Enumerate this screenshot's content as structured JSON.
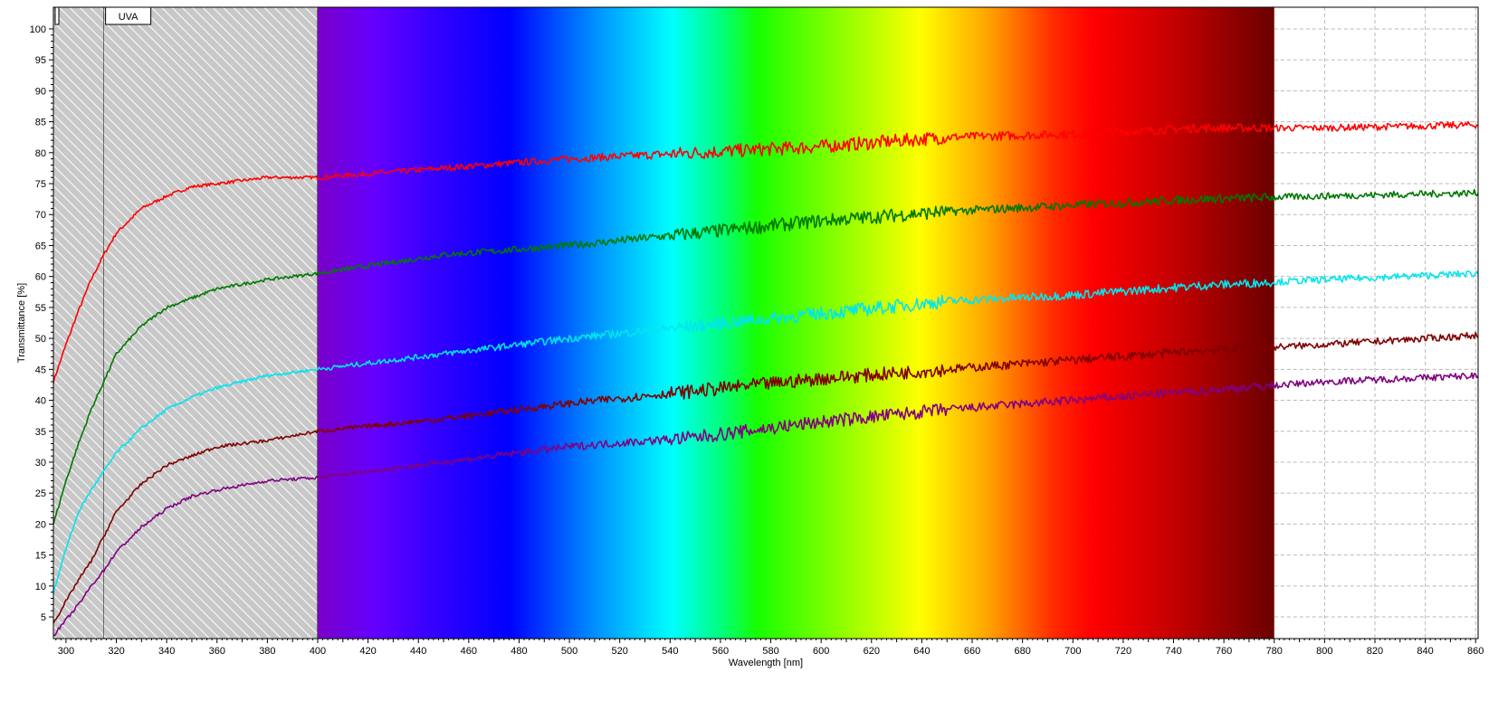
{
  "chart_data": {
    "type": "line",
    "xlabel": "Wavelength [nm]",
    "ylabel": "Transmittance [%]",
    "xlim": [
      295,
      861
    ],
    "ylim": [
      1.5,
      103.5
    ],
    "x_ticks": [
      300,
      320,
      340,
      360,
      380,
      400,
      420,
      440,
      460,
      480,
      500,
      520,
      540,
      560,
      580,
      600,
      620,
      640,
      660,
      680,
      700,
      720,
      740,
      760,
      780,
      800,
      820,
      840,
      860
    ],
    "y_ticks": [
      5,
      10,
      15,
      20,
      25,
      30,
      35,
      40,
      45,
      50,
      55,
      60,
      65,
      70,
      75,
      80,
      85,
      90,
      95,
      100
    ],
    "grid": true,
    "regions": [
      {
        "label": "",
        "x_range": [
          295,
          315
        ],
        "style": "hatched"
      },
      {
        "label": "UVA",
        "x_range": [
          315,
          400
        ],
        "style": "hatched"
      },
      {
        "label": "",
        "x_range": [
          400,
          780
        ],
        "style": "visible-spectrum"
      }
    ],
    "series": [
      {
        "color": "#ff0000",
        "x": [
          295,
          300,
          305,
          310,
          315,
          320,
          330,
          340,
          350,
          360,
          380,
          400,
          450,
          500,
          550,
          600,
          650,
          700,
          750,
          800,
          861
        ],
        "y": [
          43,
          49,
          54.5,
          59.5,
          63.5,
          67,
          71,
          73,
          74.5,
          75,
          76,
          76,
          77.5,
          79,
          80,
          81,
          82.5,
          83,
          84,
          84,
          84.5
        ]
      },
      {
        "color": "#007800",
        "x": [
          295,
          300,
          305,
          310,
          315,
          320,
          330,
          340,
          350,
          360,
          380,
          400,
          450,
          500,
          550,
          600,
          650,
          700,
          750,
          800,
          861
        ],
        "y": [
          20,
          27,
          33,
          38.5,
          43,
          47.5,
          52,
          55,
          56.5,
          58,
          59.5,
          60.5,
          63.5,
          65,
          67,
          69,
          70.5,
          71.5,
          72.5,
          73,
          73.5
        ]
      },
      {
        "color": "#00e5ee",
        "x": [
          295,
          300,
          305,
          310,
          315,
          320,
          330,
          340,
          350,
          360,
          380,
          400,
          450,
          500,
          550,
          600,
          650,
          700,
          750,
          800,
          861
        ],
        "y": [
          9,
          16,
          22,
          25.5,
          28.5,
          31.5,
          35.5,
          38.5,
          40.5,
          42,
          44,
          45,
          47.5,
          50,
          52,
          54,
          56,
          57,
          58.5,
          59.5,
          60.5
        ]
      },
      {
        "color": "#800000",
        "x": [
          295,
          300,
          305,
          310,
          315,
          320,
          330,
          340,
          350,
          360,
          380,
          400,
          450,
          500,
          550,
          600,
          650,
          700,
          750,
          800,
          861
        ],
        "y": [
          4,
          7.5,
          11,
          14,
          18,
          22,
          26.5,
          29.5,
          31,
          32.5,
          33.5,
          35,
          37,
          39.5,
          41.5,
          43.5,
          45,
          46.5,
          48,
          49,
          50.5
        ]
      },
      {
        "color": "#800080",
        "x": [
          295,
          300,
          305,
          310,
          315,
          320,
          330,
          340,
          350,
          360,
          380,
          400,
          450,
          500,
          550,
          600,
          650,
          700,
          750,
          800,
          861
        ],
        "y": [
          2,
          4.5,
          7,
          10,
          12.5,
          15.5,
          19.5,
          22.5,
          24.5,
          25.5,
          27,
          27.5,
          30,
          32.5,
          34,
          36.5,
          38.5,
          40,
          41.5,
          43,
          44
        ]
      }
    ]
  }
}
